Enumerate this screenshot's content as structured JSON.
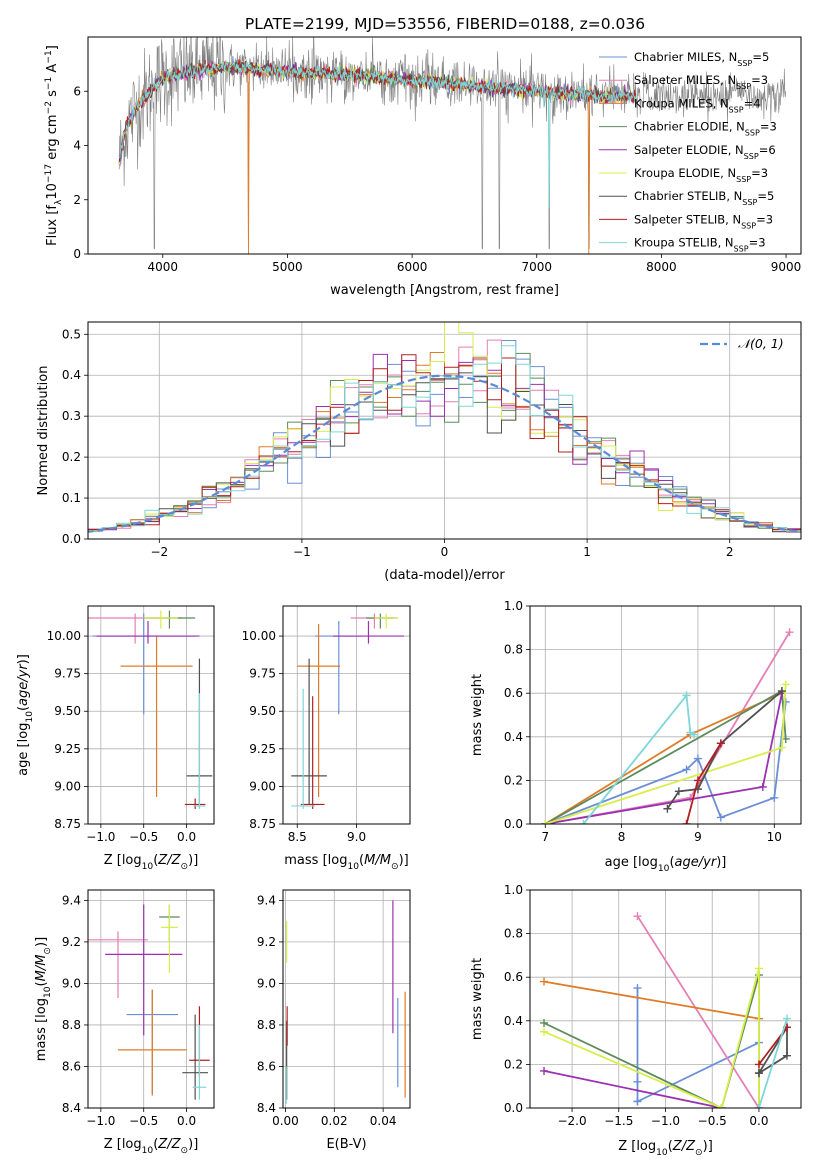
{
  "figure_title": "PLATE=2199, MJD=53556, FIBERID=0188, z=0.036",
  "series_styles": [
    {
      "key": "chabrier_miles",
      "label": "Chabrier MILES, N<sub>SSP</sub>=5",
      "legend_main": "Chabrier MILES, N",
      "legend_sub": "SSP",
      "legend_tail": "=5",
      "color": "#6a8fd6"
    },
    {
      "key": "salpeter_miles",
      "legend_main": "Salpeter MILES, N",
      "legend_sub": "SSP",
      "legend_tail": "=3",
      "color": "#e57fb6"
    },
    {
      "key": "kroupa_miles",
      "legend_main": "Kroupa MILES, N",
      "legend_sub": "SSP",
      "legend_tail": "=4",
      "color": "#e07b28"
    },
    {
      "key": "chabrier_elodie",
      "legend_main": "Chabrier ELODIE, N",
      "legend_sub": "SSP",
      "legend_tail": "=3",
      "color": "#5c8a5c"
    },
    {
      "key": "salpeter_elodie",
      "legend_main": "Salpeter ELODIE, N",
      "legend_sub": "SSP",
      "legend_tail": "=6",
      "color": "#9b30b0"
    },
    {
      "key": "kroupa_elodie",
      "legend_main": "Kroupa ELODIE, N",
      "legend_sub": "SSP",
      "legend_tail": "=3",
      "color": "#d8ee4a"
    },
    {
      "key": "chabrier_stelib",
      "legend_main": "Chabrier STELIB, N",
      "legend_sub": "SSP",
      "legend_tail": "=5",
      "color": "#505050"
    },
    {
      "key": "salpeter_stelib",
      "legend_main": "Salpeter STELIB, N",
      "legend_sub": "SSP",
      "legend_tail": "=3",
      "color": "#b02020"
    },
    {
      "key": "kroupa_stelib",
      "legend_main": "Kroupa STELIB, N",
      "legend_sub": "SSP",
      "legend_tail": "=3",
      "color": "#7fd6d8"
    }
  ],
  "chart_data": [
    {
      "id": "spectrum",
      "type": "line",
      "xlabel": "wavelength [Angstrom, rest frame]",
      "ylabel": "Flux [f",
      "ylabel_parts": [
        "Flux [f",
        "λ",
        "10",
        "−17",
        " erg cm",
        "−2",
        " s",
        "−1",
        " A",
        "−1",
        "]"
      ],
      "xlim": [
        3400,
        9120
      ],
      "ylim": [
        0,
        8
      ],
      "xticks": [
        4000,
        5000,
        6000,
        7000,
        8000,
        9000
      ],
      "yticks": [
        0,
        2,
        4,
        6
      ],
      "data_color": "#808080",
      "legend_position": "upper right",
      "continuum": {
        "x": [
          3650,
          3700,
          3800,
          3900,
          4000,
          4100,
          4200,
          4300,
          4500,
          4800,
          5000,
          5500,
          6000,
          6500,
          7000,
          7200,
          7400,
          7600,
          7800
        ],
        "y": [
          3.4,
          4.6,
          5.5,
          6.0,
          6.5,
          6.6,
          6.7,
          6.8,
          6.9,
          6.8,
          6.7,
          6.6,
          6.4,
          6.2,
          6.0,
          5.9,
          5.9,
          5.8,
          5.8
        ]
      },
      "observed_extent": [
        3650,
        9000
      ],
      "notes_absorption": [
        3933,
        4686,
        6563,
        6700,
        6800,
        7100,
        7420
      ]
    },
    {
      "id": "residuals",
      "type": "histogram",
      "xlabel": "(data-model)/error",
      "ylabel": "Normed distribution",
      "xlim": [
        -2.5,
        2.5
      ],
      "ylim": [
        0,
        0.53
      ],
      "xticks": [
        -2,
        -1,
        0,
        1,
        2
      ],
      "yticks": [
        0.0,
        0.1,
        0.2,
        0.3,
        0.4,
        0.5
      ],
      "reference_curve": {
        "label": "N(0,1)",
        "style": "dashed",
        "color": "#5b8bd6",
        "mean": 0,
        "sigma": 1
      },
      "bin_width": 0.1,
      "legend_position": "upper right"
    },
    {
      "id": "age_vs_Z",
      "type": "scatter",
      "xlabel": "Z [log10(Z/Z☉)]",
      "ylabel": "age  [log10(age/yr)]",
      "xlim": [
        -1.15,
        0.32
      ],
      "ylim": [
        8.75,
        10.2
      ],
      "xticks": [
        -1.0,
        -0.5,
        0.0
      ],
      "yticks": [
        8.75,
        9.0,
        9.25,
        9.5,
        9.75,
        10.0
      ],
      "points": [
        {
          "series": "chabrier_miles",
          "x": -0.5,
          "y": 10.0,
          "xerr": 0.6,
          "yerr": [
            9.48,
            10.15
          ]
        },
        {
          "series": "salpeter_miles",
          "x": -0.6,
          "y": 10.12,
          "xerr": 0.55,
          "yerr": [
            9.95,
            10.15
          ]
        },
        {
          "series": "kroupa_miles",
          "x": -0.35,
          "y": 9.8,
          "xerr": 0.42,
          "yerr": [
            8.93,
            10.0
          ]
        },
        {
          "series": "chabrier_elodie",
          "x": -0.2,
          "y": 10.12,
          "xerr": 0.3,
          "yerr": [
            10.05,
            10.17
          ]
        },
        {
          "series": "salpeter_elodie",
          "x": -0.45,
          "y": 10.0,
          "xerr": 0.6,
          "yerr": [
            9.95,
            10.1
          ]
        },
        {
          "series": "kroupa_elodie",
          "x": -0.3,
          "y": 10.12,
          "xerr": 0.2,
          "yerr": [
            10.05,
            10.17
          ]
        },
        {
          "series": "chabrier_stelib",
          "x": 0.15,
          "y": 9.07,
          "xerr": 0.15,
          "yerr": [
            8.88,
            9.85
          ]
        },
        {
          "series": "salpeter_stelib",
          "x": 0.1,
          "y": 8.88,
          "xerr": 0.12,
          "yerr": [
            8.85,
            8.92
          ]
        },
        {
          "series": "kroupa_stelib",
          "x": 0.15,
          "y": 8.87,
          "xerr": 0.07,
          "yerr": [
            8.85,
            9.62
          ]
        }
      ]
    },
    {
      "id": "age_vs_mass",
      "type": "scatter",
      "xlabel": "mass [log10(M/M☉)]",
      "ylabel": "",
      "xlim": [
        8.38,
        9.45
      ],
      "ylim": [
        8.75,
        10.2
      ],
      "xticks": [
        8.5,
        9.0
      ],
      "yticks": [
        8.75,
        9.0,
        9.25,
        9.5,
        9.75,
        10.0
      ],
      "points": [
        {
          "series": "chabrier_miles",
          "x": 8.85,
          "y": 10.0,
          "xerr": 0.2,
          "yerr": [
            9.48,
            10.1
          ]
        },
        {
          "series": "salpeter_miles",
          "x": 9.15,
          "y": 10.12,
          "xerr": 0.2,
          "yerr": [
            10.05,
            10.15
          ]
        },
        {
          "series": "kroupa_miles",
          "x": 8.68,
          "y": 9.8,
          "xerr": 0.18,
          "yerr": [
            8.93,
            10.08
          ]
        },
        {
          "series": "chabrier_elodie",
          "x": 9.2,
          "y": 10.12,
          "xerr": 0.12,
          "yerr": [
            10.05,
            10.15
          ]
        },
        {
          "series": "salpeter_elodie",
          "x": 9.1,
          "y": 10.0,
          "xerr": 0.3,
          "yerr": [
            9.95,
            10.1
          ]
        },
        {
          "series": "kroupa_elodie",
          "x": 9.25,
          "y": 10.12,
          "xerr": 0.1,
          "yerr": [
            10.05,
            10.15
          ]
        },
        {
          "series": "chabrier_stelib",
          "x": 8.6,
          "y": 9.07,
          "xerr": 0.15,
          "yerr": [
            8.88,
            9.85
          ]
        },
        {
          "series": "salpeter_stelib",
          "x": 8.63,
          "y": 8.88,
          "xerr": 0.1,
          "yerr": [
            8.85,
            9.6
          ]
        },
        {
          "series": "kroupa_stelib",
          "x": 8.55,
          "y": 8.87,
          "xerr": 0.1,
          "yerr": [
            8.85,
            9.65
          ]
        }
      ]
    },
    {
      "id": "weight_vs_age",
      "type": "line",
      "xlabel": "age  [log10(age/yr)]",
      "ylabel": "mass weight",
      "xlim": [
        6.8,
        10.35
      ],
      "ylim": [
        0,
        1.0
      ],
      "xticks": [
        7,
        8,
        9,
        10
      ],
      "yticks": [
        0.0,
        0.2,
        0.4,
        0.6,
        0.8,
        1.0
      ],
      "series": [
        {
          "series": "chabrier_miles",
          "x": [
            7.0,
            8.85,
            9.0,
            9.3,
            10.0,
            10.15
          ],
          "y": [
            0.0,
            0.25,
            0.3,
            0.03,
            0.12,
            0.56
          ]
        },
        {
          "series": "salpeter_miles",
          "x": [
            7.0,
            8.9,
            10.2
          ],
          "y": [
            0.0,
            0.12,
            0.88
          ]
        },
        {
          "series": "kroupa_miles",
          "x": [
            7.0,
            8.9,
            10.1
          ],
          "y": [
            0.0,
            0.41,
            0.6
          ]
        },
        {
          "series": "chabrier_elodie",
          "x": [
            7.0,
            10.1,
            10.15
          ],
          "y": [
            0.0,
            0.61,
            0.39
          ]
        },
        {
          "series": "salpeter_elodie",
          "x": [
            7.0,
            9.85,
            10.1
          ],
          "y": [
            0.0,
            0.17,
            0.6
          ]
        },
        {
          "series": "kroupa_elodie",
          "x": [
            7.0,
            10.1,
            10.15
          ],
          "y": [
            0.0,
            0.35,
            0.64
          ]
        },
        {
          "series": "chabrier_stelib",
          "x": [
            8.6,
            8.75,
            9.0,
            9.3,
            10.1
          ],
          "y": [
            0.07,
            0.15,
            0.16,
            0.37,
            0.61
          ]
        },
        {
          "series": "salpeter_stelib",
          "x": [
            8.85,
            9.0,
            9.3
          ],
          "y": [
            0.0,
            0.2,
            0.37
          ]
        },
        {
          "series": "kroupa_stelib",
          "x": [
            7.5,
            8.85,
            8.9,
            8.95
          ],
          "y": [
            0.0,
            0.59,
            0.42,
            0.41
          ]
        }
      ]
    },
    {
      "id": "mass_vs_Z",
      "type": "scatter",
      "xlabel": "Z [log10(Z/Z☉)]",
      "ylabel": "mass [log10(M/M☉)]",
      "xlim": [
        -1.15,
        0.32
      ],
      "ylim": [
        8.4,
        9.45
      ],
      "xticks": [
        -1.0,
        -0.5,
        0.0
      ],
      "yticks": [
        8.4,
        8.6,
        8.8,
        9.0,
        9.2,
        9.4
      ],
      "points": [
        {
          "series": "chabrier_miles",
          "x": -0.4,
          "y": 8.85,
          "xerr": 0.3,
          "yerr": [
            8.47,
            8.97
          ]
        },
        {
          "series": "salpeter_miles",
          "x": -0.8,
          "y": 9.21,
          "xerr": 0.35,
          "yerr": [
            8.93,
            9.25
          ]
        },
        {
          "series": "kroupa_miles",
          "x": -0.4,
          "y": 8.68,
          "xerr": 0.4,
          "yerr": [
            8.46,
            8.97
          ]
        },
        {
          "series": "chabrier_elodie",
          "x": -0.2,
          "y": 9.32,
          "xerr": 0.12,
          "yerr": [
            9.2,
            9.38
          ]
        },
        {
          "series": "salpeter_elodie",
          "x": -0.5,
          "y": 9.14,
          "xerr": 0.45,
          "yerr": [
            8.75,
            9.38
          ]
        },
        {
          "series": "kroupa_elodie",
          "x": -0.2,
          "y": 9.27,
          "xerr": 0.1,
          "yerr": [
            9.05,
            9.38
          ]
        },
        {
          "series": "chabrier_stelib",
          "x": 0.1,
          "y": 8.57,
          "xerr": 0.15,
          "yerr": [
            8.44,
            8.85
          ]
        },
        {
          "series": "salpeter_stelib",
          "x": 0.15,
          "y": 8.63,
          "xerr": 0.12,
          "yerr": [
            8.55,
            8.89
          ]
        },
        {
          "series": "kroupa_stelib",
          "x": 0.15,
          "y": 8.5,
          "xerr": 0.08,
          "yerr": [
            8.44,
            8.8
          ]
        }
      ]
    },
    {
      "id": "mass_vs_ebv",
      "type": "scatter",
      "xlabel": "E(B-V)",
      "ylabel": "",
      "xlim": [
        -0.001,
        0.051
      ],
      "ylim": [
        8.4,
        9.45
      ],
      "xticks": [
        0.0,
        0.02,
        0.04
      ],
      "yticks": [
        8.4,
        8.6,
        8.8,
        9.0,
        9.2,
        9.4
      ],
      "points": [
        {
          "series": "chabrier_miles",
          "x": 0.046,
          "y": 8.7,
          "yerr": [
            8.5,
            8.93
          ]
        },
        {
          "series": "kroupa_miles",
          "x": 0.049,
          "y": 8.7,
          "yerr": [
            8.45,
            8.96
          ]
        },
        {
          "series": "salpeter_elodie",
          "x": 0.044,
          "y": 9.1,
          "yerr": [
            8.76,
            9.4
          ]
        },
        {
          "series": "kroupa_elodie",
          "x": 0.0005,
          "y": 9.2,
          "yerr": [
            9.1,
            9.3
          ]
        },
        {
          "series": "chabrier_stelib",
          "x": 0.0005,
          "y": 8.6,
          "yerr": [
            8.44,
            8.82
          ]
        },
        {
          "series": "salpeter_stelib",
          "x": 0.0007,
          "y": 8.8,
          "yerr": [
            8.7,
            8.89
          ]
        },
        {
          "series": "kroupa_stelib",
          "x": 0.0003,
          "y": 8.5,
          "yerr": [
            8.42,
            8.6
          ]
        }
      ]
    },
    {
      "id": "weight_vs_Z",
      "type": "line",
      "xlabel": "Z [log10(Z/Z☉)]",
      "ylabel": "mass weight",
      "xlim": [
        -2.45,
        0.45
      ],
      "ylim": [
        0,
        1.0
      ],
      "xticks": [
        -2.0,
        -1.5,
        -1.0,
        -0.5,
        0.0
      ],
      "yticks": [
        0.0,
        0.2,
        0.4,
        0.6,
        0.8,
        1.0
      ],
      "series": [
        {
          "series": "chabrier_miles",
          "x": [
            -1.3,
            -1.3,
            -1.3,
            0.0,
            -1.3
          ],
          "y": [
            0.55,
            0.12,
            0.03,
            0.3,
            0.03
          ]
        },
        {
          "series": "salpeter_miles",
          "x": [
            -1.3,
            0.0
          ],
          "y": [
            0.88,
            0.0
          ]
        },
        {
          "series": "kroupa_miles",
          "x": [
            -2.3,
            0.0
          ],
          "y": [
            0.58,
            0.41
          ]
        },
        {
          "series": "chabrier_elodie",
          "x": [
            -2.3,
            -0.4,
            0.0,
            0.0
          ],
          "y": [
            0.39,
            0.0,
            0.61,
            0.0
          ]
        },
        {
          "series": "salpeter_elodie",
          "x": [
            -2.3,
            -0.4
          ],
          "y": [
            0.17,
            0.0
          ]
        },
        {
          "series": "kroupa_elodie",
          "x": [
            -2.3,
            -0.4,
            0.0,
            0.0
          ],
          "y": [
            0.35,
            0.0,
            0.64,
            0.0
          ]
        },
        {
          "series": "chabrier_stelib",
          "x": [
            0.0,
            0.3,
            0.3,
            0.0
          ],
          "y": [
            0.16,
            0.24,
            0.37,
            0.16
          ]
        },
        {
          "series": "salpeter_stelib",
          "x": [
            0.0,
            0.3
          ],
          "y": [
            0.2,
            0.37
          ]
        },
        {
          "series": "kroupa_stelib",
          "x": [
            0.0,
            0.3,
            0.0
          ],
          "y": [
            0.0,
            0.41,
            0.0
          ]
        }
      ]
    }
  ]
}
